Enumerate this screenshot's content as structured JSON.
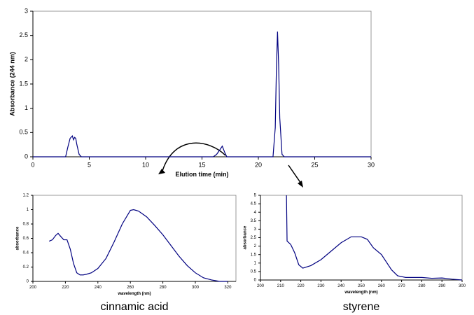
{
  "chart_data": [
    {
      "type": "line",
      "x_label": "Elution time (min)",
      "y_label": "Absorbance (244 nm)",
      "x": [
        0,
        2.9,
        3.1,
        3.3,
        3.5,
        3.6,
        3.7,
        3.8,
        3.9,
        4.1,
        4.3,
        16.0,
        16.3,
        16.6,
        16.8,
        17.0,
        17.2,
        21.3,
        21.5,
        21.6,
        21.7,
        21.8,
        21.9,
        22.1,
        22.3,
        30
      ],
      "series": [
        {
          "color": "#000080",
          "values": [
            0,
            0,
            0.2,
            0.38,
            0.43,
            0.35,
            0.4,
            0.38,
            0.25,
            0.05,
            0,
            0,
            0.05,
            0.15,
            0.22,
            0.1,
            0,
            0,
            0.6,
            1.8,
            2.58,
            1.9,
            0.8,
            0.05,
            0,
            0
          ]
        }
      ],
      "xlim": [
        0,
        30
      ],
      "xticks": [
        0,
        5,
        10,
        15,
        20,
        25,
        30
      ],
      "ylim": [
        0,
        3
      ],
      "yticks": [
        0,
        0.5,
        1,
        1.5,
        2,
        2.5,
        3
      ]
    },
    {
      "type": "line",
      "caption": "cinnamic acid",
      "x_label": "wavelength (nm)",
      "y_label": "absorbance",
      "x": [
        210,
        212,
        214,
        215.5,
        217,
        219,
        221,
        223,
        225,
        227,
        229,
        231,
        233,
        236,
        240,
        245,
        250,
        255,
        260,
        262,
        265,
        270,
        275,
        280,
        285,
        290,
        295,
        300,
        305,
        310,
        315,
        320
      ],
      "series": [
        {
          "color": "#000080",
          "values": [
            0.56,
            0.58,
            0.64,
            0.67,
            0.63,
            0.58,
            0.58,
            0.45,
            0.25,
            0.12,
            0.09,
            0.09,
            0.1,
            0.12,
            0.18,
            0.32,
            0.55,
            0.8,
            0.99,
            1.0,
            0.98,
            0.9,
            0.78,
            0.65,
            0.5,
            0.35,
            0.22,
            0.12,
            0.05,
            0.02,
            0,
            0
          ]
        }
      ],
      "xlim": [
        200,
        325
      ],
      "xticks": [
        200,
        220,
        240,
        260,
        280,
        300,
        320
      ],
      "ylim": [
        0,
        1.2
      ],
      "yticks": [
        0,
        0.2,
        0.4,
        0.6,
        0.8,
        1,
        1.2
      ]
    },
    {
      "type": "line",
      "caption": "styrene",
      "x_label": "wavelength (nm)",
      "y_label": "absorbance",
      "x": [
        212.9,
        213.2,
        215,
        217,
        219,
        221,
        225,
        230,
        235,
        240,
        245,
        250,
        253,
        256,
        260,
        265,
        268,
        272,
        280,
        285,
        290,
        295,
        300
      ],
      "series": [
        {
          "color": "#000080",
          "values": [
            5,
            2.3,
            2.1,
            1.6,
            0.9,
            0.7,
            0.85,
            1.2,
            1.7,
            2.2,
            2.55,
            2.55,
            2.4,
            1.9,
            1.5,
            0.6,
            0.25,
            0.15,
            0.15,
            0.1,
            0.12,
            0.05,
            0
          ]
        }
      ],
      "xlim": [
        200,
        300
      ],
      "xticks": [
        200,
        210,
        220,
        230,
        240,
        250,
        260,
        270,
        280,
        290,
        300
      ],
      "ylim": [
        0,
        5
      ],
      "yticks": [
        0,
        0.5,
        1,
        1.5,
        2,
        2.5,
        3,
        3.5,
        4,
        4.5,
        5
      ]
    }
  ]
}
